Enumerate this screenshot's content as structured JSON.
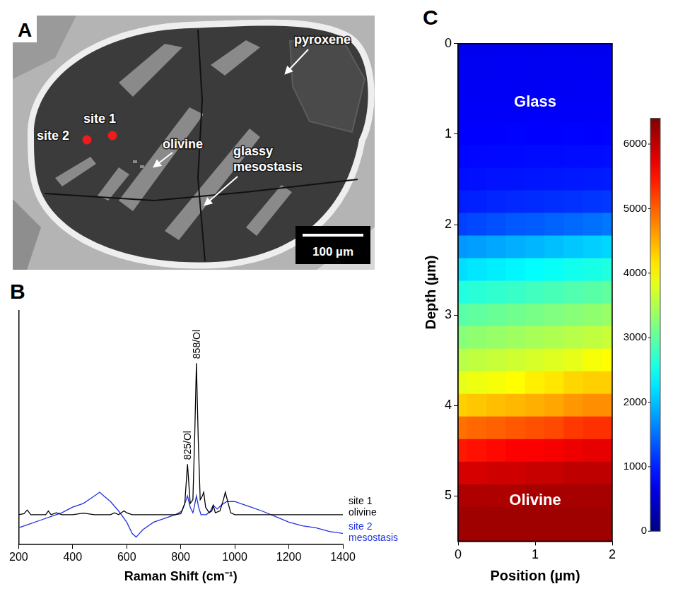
{
  "panel_a": {
    "letter": "A",
    "labels": [
      "site 1",
      "site 2",
      "olivine",
      "pyroxene",
      "glassy mesostasis"
    ],
    "scale_bar": "100 µm"
  },
  "chart_data": [
    {
      "letter": "B",
      "type": "line",
      "x_label": "Raman Shift (cm⁻¹)",
      "xlim": [
        200,
        1400
      ],
      "xticks": [
        200,
        400,
        600,
        800,
        1000,
        1200,
        1400
      ],
      "ylim": [
        0,
        125
      ],
      "tick_labels": "x",
      "grid": false,
      "series": [
        {
          "name": "site 1 olivine",
          "color": "#000000",
          "x": [
            200,
            220,
            232,
            245,
            300,
            310,
            320,
            340,
            360,
            400,
            440,
            480,
            540,
            555,
            570,
            590,
            600,
            620,
            700,
            780,
            800,
            815,
            825,
            835,
            845,
            852,
            858,
            865,
            872,
            880,
            885,
            892,
            905,
            915,
            920,
            928,
            945,
            958,
            965,
            972,
            985,
            1000,
            1100,
            1200,
            1300,
            1400
          ],
          "values": [
            16,
            16.5,
            18.5,
            16,
            16,
            18,
            16,
            17,
            16,
            16,
            16.8,
            16,
            16,
            17,
            16,
            18,
            17,
            16,
            16,
            16,
            16.5,
            22,
            43,
            22,
            24,
            60,
            97,
            55,
            24,
            26,
            28,
            20,
            17,
            18,
            21,
            17,
            18,
            24,
            28,
            24,
            17,
            16,
            16,
            16,
            16,
            16
          ]
        },
        {
          "name": "site 2 mesostasis",
          "color": "#2233dd",
          "x": [
            200,
            240,
            280,
            320,
            360,
            400,
            440,
            470,
            490,
            500,
            515,
            540,
            570,
            600,
            620,
            635,
            660,
            700,
            740,
            780,
            805,
            815,
            825,
            835,
            845,
            850,
            858,
            866,
            875,
            895,
            910,
            920,
            935,
            950,
            970,
            1000,
            1020,
            1060,
            1100,
            1150,
            1200,
            1250,
            1300,
            1350,
            1400
          ],
          "values": [
            9,
            11,
            13,
            15,
            17,
            20,
            22,
            25,
            27,
            28,
            26,
            23,
            18,
            12,
            6,
            4,
            8,
            12,
            14,
            16,
            18,
            22,
            26,
            20,
            17,
            20,
            26,
            20,
            16,
            16,
            18,
            21,
            19,
            21,
            23,
            23,
            22,
            20,
            18,
            15,
            12,
            10,
            9,
            7,
            6
          ]
        }
      ],
      "annotations": [
        {
          "text": "825/Ol",
          "x": 825
        },
        {
          "text": "858/Ol",
          "x": 858
        }
      ]
    },
    {
      "letter": "C",
      "type": "heatmap",
      "x_label": "Position (µm)",
      "y_label": "Depth (µm)",
      "xlim": [
        0,
        2
      ],
      "xticks": [
        0,
        1,
        2
      ],
      "ylim": [
        5.5,
        0
      ],
      "yticks": [
        0,
        1,
        2,
        3,
        4,
        5
      ],
      "grid": false,
      "x": [
        0,
        0.25,
        0.5,
        0.75,
        1,
        1.25,
        1.5,
        1.75,
        2
      ],
      "y": [
        0,
        0.25,
        0.5,
        0.75,
        1,
        1.25,
        1.5,
        1.75,
        2,
        2.25,
        2.5,
        2.75,
        3,
        3.25,
        3.5,
        3.75,
        4,
        4.25,
        4.5,
        4.75,
        5,
        5.25,
        5.5
      ],
      "values": [
        [
          700,
          700,
          710,
          700,
          700,
          710,
          700,
          700,
          710
        ],
        [
          720,
          720,
          720,
          730,
          720,
          720,
          730,
          720,
          720
        ],
        [
          740,
          740,
          750,
          740,
          740,
          750,
          740,
          750,
          740
        ],
        [
          760,
          760,
          770,
          760,
          770,
          760,
          770,
          760,
          770
        ],
        [
          790,
          800,
          800,
          810,
          800,
          800,
          810,
          800,
          810
        ],
        [
          830,
          840,
          850,
          850,
          860,
          860,
          870,
          870,
          880
        ],
        [
          880,
          900,
          910,
          920,
          930,
          940,
          950,
          960,
          970
        ],
        [
          980,
          1000,
          1030,
          1050,
          1070,
          1090,
          1110,
          1130,
          1150
        ],
        [
          1200,
          1250,
          1300,
          1350,
          1380,
          1420,
          1460,
          1500,
          1550
        ],
        [
          1750,
          1800,
          1850,
          1900,
          1950,
          2000,
          2050,
          2100,
          2150
        ],
        [
          2200,
          2250,
          2300,
          2350,
          2400,
          2450,
          2500,
          2550,
          2600
        ],
        [
          2600,
          2650,
          2700,
          2750,
          2800,
          2850,
          2900,
          2950,
          3000
        ],
        [
          2950,
          3000,
          3050,
          3100,
          3150,
          3200,
          3250,
          3300,
          3350
        ],
        [
          3250,
          3300,
          3350,
          3400,
          3450,
          3500,
          3550,
          3600,
          3650
        ],
        [
          3550,
          3600,
          3650,
          3700,
          3750,
          3800,
          3850,
          3950,
          4000
        ],
        [
          3850,
          3900,
          3950,
          4000,
          4100,
          4150,
          4250,
          4300,
          4300
        ],
        [
          4300,
          4350,
          4400,
          4450,
          4500,
          4550,
          4650,
          4700,
          4700
        ],
        [
          4900,
          4950,
          5000,
          5050,
          5100,
          5150,
          5250,
          5300,
          5300
        ],
        [
          5450,
          5500,
          5550,
          5600,
          5600,
          5650,
          5700,
          5750,
          5750
        ],
        [
          5850,
          5850,
          5900,
          5900,
          5950,
          5950,
          6000,
          6000,
          6000
        ],
        [
          6100,
          6100,
          6100,
          6100,
          6150,
          6150,
          6150,
          6150,
          6150
        ],
        [
          6200,
          6200,
          6200,
          6200,
          6200,
          6200,
          6200,
          6200,
          6200
        ],
        [
          6200,
          6200,
          6200,
          6200,
          6200,
          6200,
          6200,
          6200,
          6200
        ]
      ],
      "colorbar": {
        "range": [
          0,
          6400
        ],
        "ticks": [
          0,
          1000,
          2000,
          3000,
          4000,
          5000,
          6000
        ]
      },
      "annotations": [
        {
          "text": "Glass",
          "x": 1,
          "y": 0.65
        },
        {
          "text": "Olivine",
          "x": 1,
          "y": 5.05
        }
      ]
    }
  ]
}
